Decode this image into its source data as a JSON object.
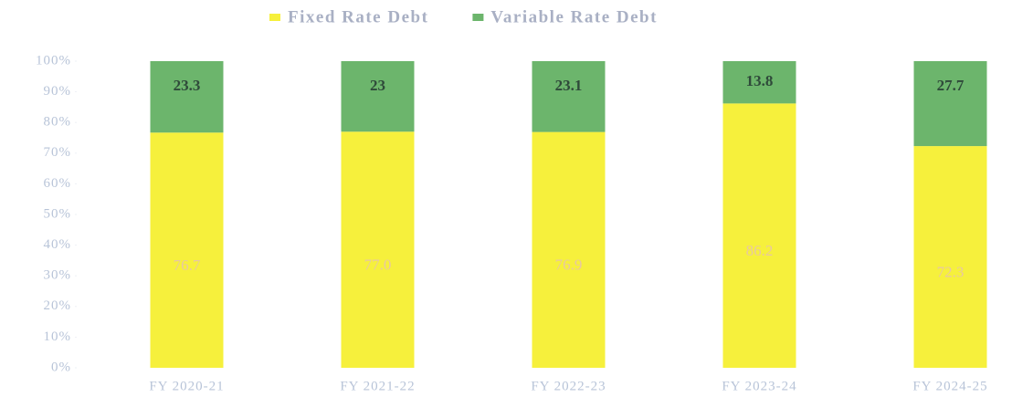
{
  "chart_data": {
    "type": "stacked_bar",
    "categories": [
      "FY 2020-21",
      "FY 2021-22",
      "FY 2022-23",
      "FY 2023-24",
      "FY 2024-25"
    ],
    "series": [
      {
        "name": "Fixed Rate Debt",
        "color": "#f6f03c",
        "values": [
          76.7,
          77.0,
          76.9,
          86.2,
          72.3
        ],
        "value_labels": [
          "76.7",
          "77.0",
          "76.9",
          "86.2",
          "72.3"
        ]
      },
      {
        "name": "Variable Rate Debt",
        "color": "#6cb56c",
        "values": [
          23.3,
          23,
          23.1,
          13.8,
          27.7
        ]
      }
    ],
    "ylim": [
      0,
      100
    ],
    "yticks": [
      {
        "value": 0,
        "label": "0%"
      },
      {
        "value": 10,
        "label": "10%"
      },
      {
        "value": 20,
        "label": "20%"
      },
      {
        "value": 30,
        "label": "30%"
      },
      {
        "value": 40,
        "label": "40%"
      },
      {
        "value": 50,
        "label": "50%"
      },
      {
        "value": 60,
        "label": "60%"
      },
      {
        "value": 70,
        "label": "70%"
      },
      {
        "value": 80,
        "label": "80%"
      },
      {
        "value": 90,
        "label": "90%"
      },
      {
        "value": 100,
        "label": "100%"
      }
    ],
    "legend": "top"
  }
}
